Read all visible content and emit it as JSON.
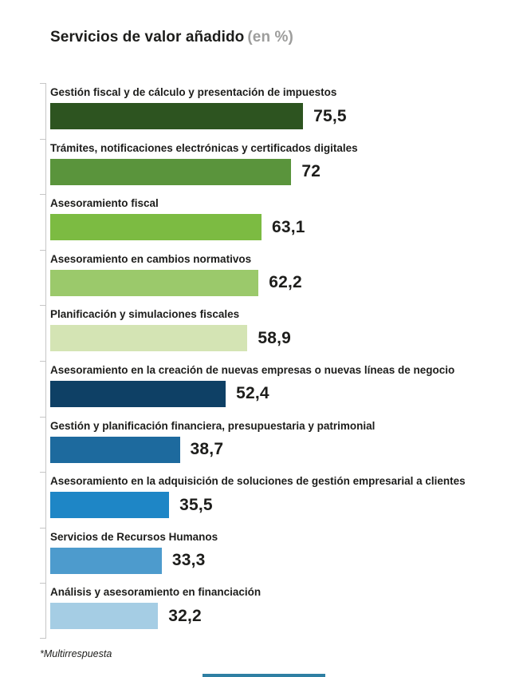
{
  "title": {
    "main": "Servicios de valor añadido",
    "suffix": "(en %)"
  },
  "footnote": "*Multirrespuesta",
  "colors": {
    "title_text": "#1d1d1b",
    "title_suffix": "#9d9d9c",
    "axis": "#c6c6c6",
    "bottom_accent": "#2e7fa3"
  },
  "chart_data": {
    "type": "bar",
    "orientation": "horizontal",
    "title": "Servicios de valor añadido (en %)",
    "unit": "%",
    "xlim": [
      0,
      100
    ],
    "grid": false,
    "legend": false,
    "note": "*Multirrespuesta",
    "categories": [
      "Gestión fiscal y de cálculo y presentación de impuestos",
      "Trámites, notificaciones electrónicas y certificados digitales",
      "Asesoramiento fiscal",
      "Asesoramiento en cambios normativos",
      "Planificación y simulaciones fiscales",
      "Asesoramiento en la creación de nuevas empresas o nuevas líneas de negocio",
      "Gestión y planificación financiera, presupuestaria y patrimonial",
      "Asesoramiento en la adquisición de soluciones de gestión empresarial a clientes",
      "Servicios de Recursos Humanos",
      "Análisis y asesoramiento en financiación"
    ],
    "values": [
      75.5,
      72,
      63.1,
      62.2,
      58.9,
      52.4,
      38.7,
      35.5,
      33.3,
      32.2
    ],
    "items": [
      {
        "label": "Gestión fiscal y de cálculo y presentación de impuestos",
        "value": 75.5,
        "display": "75,5",
        "color": "#2d5420"
      },
      {
        "label": "Trámites, notificaciones electrónicas y certificados digitales",
        "value": 72,
        "display": "72",
        "color": "#5a943c"
      },
      {
        "label": "Asesoramiento fiscal",
        "value": 63.1,
        "display": "63,1",
        "color": "#7cbb42"
      },
      {
        "label": "Asesoramiento en cambios normativos",
        "value": 62.2,
        "display": "62,2",
        "color": "#9bc96b"
      },
      {
        "label": "Planificación y simulaciones fiscales",
        "value": 58.9,
        "display": "58,9",
        "color": "#d4e4b4"
      },
      {
        "label": "Asesoramiento en la creación de nuevas empresas o nuevas líneas de negocio",
        "value": 52.4,
        "display": "52,4",
        "color": "#0e4065"
      },
      {
        "label": "Gestión y planificación financiera, presupuestaria y patrimonial",
        "value": 38.7,
        "display": "38,7",
        "color": "#1d6a9e"
      },
      {
        "label": "Asesoramiento en la adquisición de soluciones de gestión empresarial a clientes",
        "value": 35.5,
        "display": "35,5",
        "color": "#1e86c6"
      },
      {
        "label": "Servicios de Recursos Humanos",
        "value": 33.3,
        "display": "33,3",
        "color": "#4d9bcd"
      },
      {
        "label": "Análisis y asesoramiento en financiación",
        "value": 32.2,
        "display": "32,2",
        "color": "#a5cde4"
      }
    ]
  }
}
